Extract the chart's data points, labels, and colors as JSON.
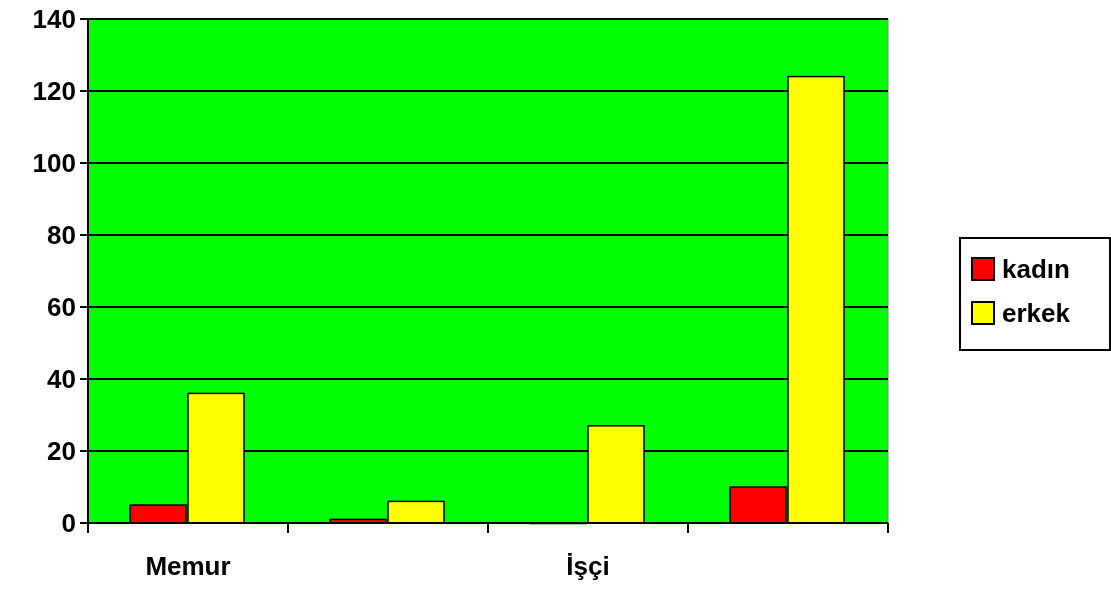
{
  "chart_data": {
    "type": "bar",
    "categories": [
      "Memur",
      null,
      "İşçi",
      null
    ],
    "series": [
      {
        "name": "kadın",
        "color": "#ff0000",
        "values": [
          5,
          1,
          0,
          10
        ]
      },
      {
        "name": "erkek",
        "color": "#ffff00",
        "values": [
          36,
          6,
          27,
          124
        ]
      }
    ],
    "ylim": [
      0,
      140
    ],
    "yticks": [
      0,
      20,
      40,
      60,
      80,
      100,
      120,
      140
    ],
    "grid": "y",
    "legend": "right"
  }
}
